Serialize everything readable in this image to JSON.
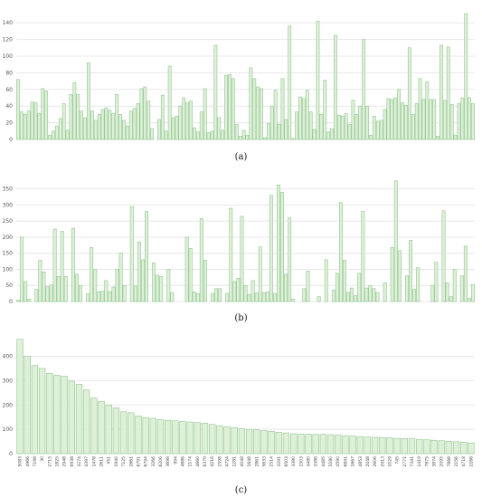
{
  "captions": {
    "a": "(a)",
    "b": "(b)",
    "c": "(c)"
  },
  "chart_data": [
    {
      "type": "bar",
      "ylim": [
        0,
        150
      ],
      "yticks": [
        0,
        20,
        40,
        60,
        80,
        100,
        120,
        140
      ],
      "grid": true,
      "values": [
        72,
        33,
        30,
        34,
        45,
        44,
        31,
        61,
        58,
        5,
        10,
        16,
        25,
        43,
        11,
        54,
        68,
        54,
        34,
        26,
        92,
        34,
        23,
        30,
        36,
        38,
        35,
        31,
        54,
        30,
        23,
        16,
        34,
        37,
        43,
        61,
        63,
        46,
        13,
        0,
        24,
        53,
        10,
        88,
        26,
        28,
        40,
        50,
        44,
        46,
        14,
        9,
        33,
        61,
        8,
        10,
        113,
        26,
        11,
        77,
        78,
        73,
        18,
        4,
        11,
        5,
        86,
        73,
        63,
        61,
        2,
        19,
        40,
        59,
        18,
        73,
        24,
        136,
        1,
        33,
        51,
        49,
        59,
        33,
        12,
        142,
        30,
        71,
        9,
        13,
        125,
        29,
        28,
        31,
        18,
        47,
        30,
        40,
        120,
        40,
        5,
        28,
        22,
        23,
        36,
        49,
        48,
        50,
        60,
        44,
        41,
        110,
        30,
        43,
        73,
        48,
        69,
        48,
        48,
        4,
        113,
        47,
        111,
        42,
        5,
        43,
        50,
        151,
        50,
        43
      ]
    },
    {
      "type": "bar",
      "ylim": [
        0,
        380
      ],
      "yticks": [
        0,
        50,
        100,
        150,
        200,
        250,
        300,
        350
      ],
      "grid": true,
      "values": [
        4,
        200,
        62,
        8,
        0,
        38,
        128,
        92,
        46,
        52,
        225,
        78,
        218,
        78,
        0,
        228,
        85,
        50,
        0,
        24,
        168,
        100,
        30,
        32,
        65,
        31,
        45,
        100,
        150,
        50,
        0,
        295,
        48,
        185,
        130,
        280,
        0,
        120,
        82,
        78,
        0,
        100,
        28,
        0,
        0,
        0,
        200,
        165,
        30,
        25,
        258,
        128,
        0,
        25,
        40,
        40,
        0,
        25,
        290,
        62,
        72,
        265,
        50,
        22,
        65,
        27,
        170,
        28,
        30,
        330,
        25,
        362,
        340,
        85,
        260,
        8,
        0,
        0,
        40,
        95,
        0,
        0,
        15,
        0,
        130,
        0,
        35,
        88,
        308,
        128,
        28,
        42,
        18,
        88,
        280,
        42,
        50,
        40,
        28,
        0,
        58,
        0,
        168,
        375,
        158,
        0,
        80,
        190,
        38,
        105,
        0,
        0,
        0,
        50,
        122,
        0,
        282,
        58,
        15,
        100,
        0,
        80,
        172,
        10,
        53
      ]
    },
    {
      "type": "bar",
      "ylim": [
        0,
        480
      ],
      "yticks": [
        0,
        100,
        200,
        300,
        400
      ],
      "grid": true,
      "categories": [
        "5083",
        "4966",
        "7198",
        "30",
        "2715",
        "1825",
        "2948",
        "6938",
        "3274",
        "4397",
        "1478",
        "2611",
        "451",
        "1940",
        "7125",
        "2661",
        "6791",
        "6794",
        "3266",
        "6206",
        "3698",
        "994",
        "4886",
        "1174",
        "4660",
        "6379",
        "4216",
        "2598",
        "4724",
        "1281",
        "4048",
        "1648",
        "2861",
        "5633",
        "2514",
        "3291",
        "6503",
        "3380",
        "1503",
        "3480",
        "3386",
        "4485",
        "5180",
        "4590",
        "6841",
        "1667",
        "4853",
        "2048",
        "2606",
        "2913",
        "1029",
        "745",
        "2771",
        "7341",
        "1419",
        "7875",
        "3874",
        "2095",
        "7888",
        "2156",
        "4718",
        "2166"
      ],
      "values": [
        470,
        400,
        362,
        350,
        330,
        322,
        318,
        298,
        285,
        262,
        228,
        215,
        200,
        188,
        172,
        168,
        155,
        148,
        145,
        140,
        137,
        135,
        132,
        130,
        128,
        125,
        120,
        115,
        110,
        107,
        103,
        100,
        98,
        95,
        92,
        88,
        85,
        82,
        80,
        80,
        79,
        79,
        78,
        76,
        74,
        72,
        70,
        68,
        67,
        66,
        65,
        63,
        62,
        61,
        59,
        57,
        55,
        53,
        51,
        49,
        47,
        44
      ]
    }
  ]
}
